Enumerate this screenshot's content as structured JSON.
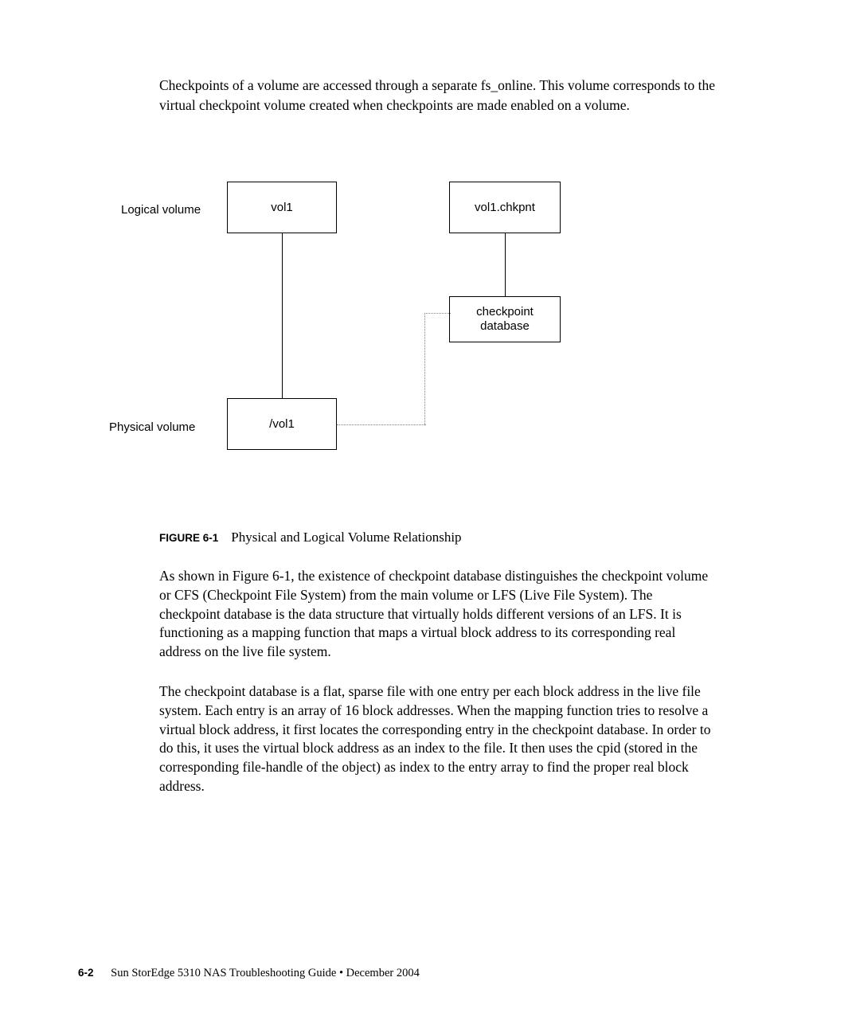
{
  "intro_paragraph": "Checkpoints of a volume are accessed through a separate fs_online. This volume corresponds to the virtual checkpoint volume created when checkpoints are made enabled on a volume.",
  "diagram": {
    "label_logical": "Logical volume",
    "label_physical": "Physical volume",
    "box_vol1": "vol1",
    "box_vol1chkpnt": "vol1.chkpnt",
    "box_checkpoint_line1": "checkpoint",
    "box_checkpoint_line2": "database",
    "box_physvol": "/vol1",
    "box_border_color": "#000000",
    "dotted_color": "#808080",
    "font_family": "Arial, Helvetica, sans-serif",
    "font_size_pt": 11
  },
  "figure": {
    "label": "FIGURE 6-1",
    "title": "Physical and Logical Volume Relationship"
  },
  "paragraph1": "As shown in Figure 6-1, the existence of checkpoint database distinguishes the checkpoint volume or CFS (Checkpoint File System) from the main volume or LFS (Live File System). The checkpoint database is the data structure that virtually holds different versions of an LFS. It is functioning as a mapping function that maps a virtual block address to its corresponding real address on the live file system.",
  "paragraph2": "The checkpoint database is a flat, sparse file with one entry per each block address in the live file system. Each entry is an array of 16 block addresses. When the mapping function tries to resolve a virtual block address, it first locates the corresponding entry in the checkpoint database. In order to do this, it uses the virtual block address as an index to the file. It then uses the cpid (stored in the corresponding file-handle of the object) as index to the entry array to find the proper real block address.",
  "footer": {
    "page_num": "6-2",
    "doc_title": "Sun StorEdge 5310 NAS Troubleshooting Guide  •  December 2004"
  },
  "colors": {
    "background": "#ffffff",
    "text": "#000000"
  }
}
